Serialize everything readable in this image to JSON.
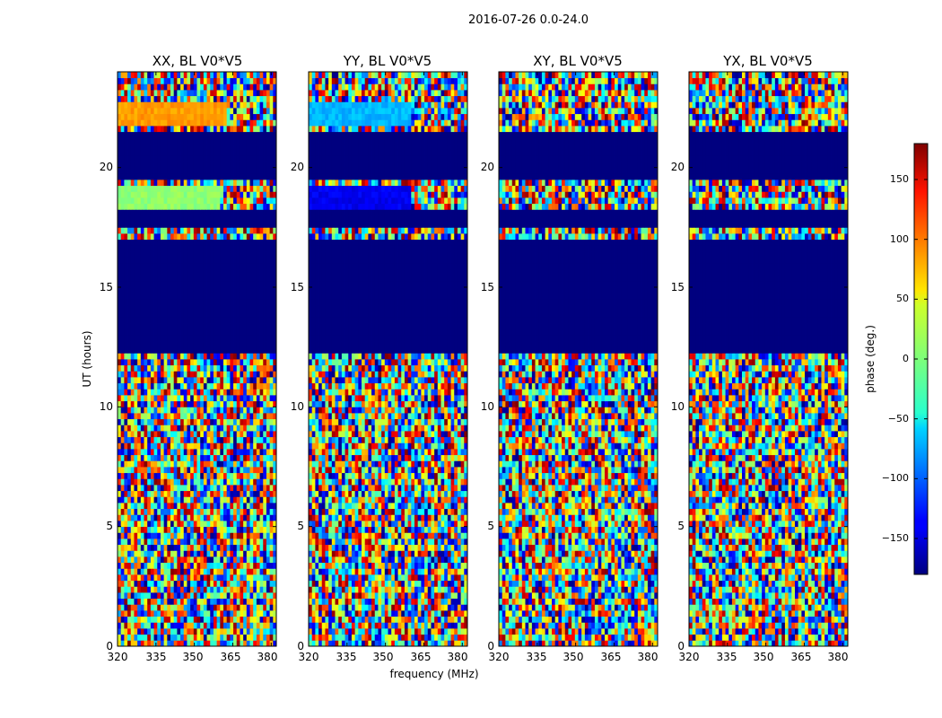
{
  "figure": {
    "title": "2016-07-26 0.0-24.0"
  },
  "chart_data": [
    {
      "type": "heatmap",
      "title": "XX, BL V0*V5",
      "xlabel": "",
      "ylabel": "UT (hours)",
      "xlim": [
        320,
        382
      ],
      "ylim": [
        0,
        24
      ],
      "x_ticks": [
        "320",
        "335",
        "350",
        "365",
        "380"
      ],
      "y_ticks": [
        "0",
        "5",
        "10",
        "15",
        "20"
      ],
      "blank_bands": [
        [
          12.2,
          17.1
        ],
        [
          17.5,
          18.3
        ],
        [
          19.4,
          21.6
        ]
      ],
      "bands": [
        {
          "y": [
            21.65,
            22.7
          ],
          "phase": 80,
          "x_end": 363
        },
        {
          "y": [
            18.35,
            19.35
          ],
          "phase": 5,
          "x_end": 360
        }
      ]
    },
    {
      "type": "heatmap",
      "title": "YY, BL V0*V5",
      "xlabel": "frequency (MHz)",
      "ylabel": "",
      "xlim": [
        320,
        382
      ],
      "ylim": [
        0,
        24
      ],
      "x_ticks": [
        "320",
        "335",
        "350",
        "365",
        "380"
      ],
      "y_ticks": [
        "0",
        "5",
        "10",
        "15",
        "20"
      ],
      "blank_bands": [
        [
          12.2,
          17.1
        ],
        [
          17.5,
          18.3
        ],
        [
          19.4,
          21.6
        ]
      ],
      "bands": [
        {
          "y": [
            21.65,
            22.7
          ],
          "phase": -70,
          "x_end": 360
        },
        {
          "y": [
            18.35,
            19.35
          ],
          "phase": -140,
          "x_end": 360
        }
      ]
    },
    {
      "type": "heatmap",
      "title": "XY, BL V0*V5",
      "xlabel": "",
      "ylabel": "",
      "xlim": [
        320,
        382
      ],
      "ylim": [
        0,
        24
      ],
      "x_ticks": [
        "320",
        "335",
        "350",
        "365",
        "380"
      ],
      "y_ticks": [
        "0",
        "5",
        "10",
        "15",
        "20"
      ],
      "blank_bands": [
        [
          12.2,
          17.1
        ],
        [
          17.5,
          18.3
        ],
        [
          19.4,
          21.6
        ]
      ],
      "bands": []
    },
    {
      "type": "heatmap",
      "title": "YX, BL V0*V5",
      "xlabel": "",
      "ylabel": "",
      "xlim": [
        320,
        382
      ],
      "ylim": [
        0,
        24
      ],
      "x_ticks": [
        "320",
        "335",
        "350",
        "365",
        "380"
      ],
      "y_ticks": [
        "0",
        "5",
        "10",
        "15",
        "20"
      ],
      "blank_bands": [
        [
          12.2,
          17.1
        ],
        [
          17.5,
          18.3
        ],
        [
          19.4,
          21.6
        ]
      ],
      "bands": []
    }
  ],
  "colorbar": {
    "label": "phase (deg.)",
    "range": [
      -180,
      180
    ],
    "ticks": [
      "150",
      "100",
      "50",
      "0",
      "−50",
      "−100",
      "−150"
    ],
    "tick_values": [
      150,
      100,
      50,
      0,
      -50,
      -100,
      -150
    ],
    "colormap": "jet",
    "colors": {
      "low": "#00007f",
      "high": "#7f0000"
    }
  }
}
